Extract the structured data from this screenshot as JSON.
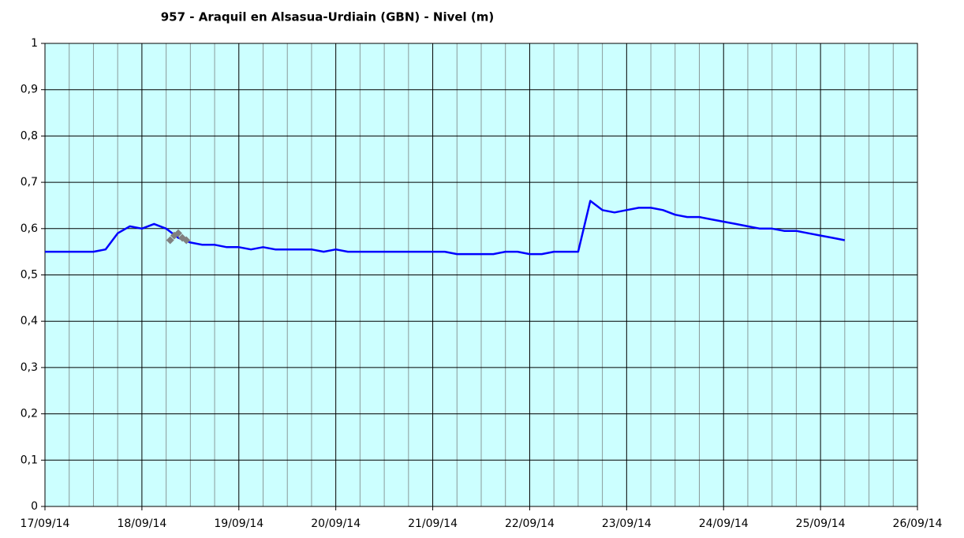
{
  "chart_data": {
    "type": "line",
    "title": "957 - Araquil en Alsasua-Urdiain (GBN) - Nivel (m)",
    "x": [
      "2014-09-17T00:00",
      "2014-09-17T03:00",
      "2014-09-17T06:00",
      "2014-09-17T09:00",
      "2014-09-17T12:00",
      "2014-09-17T15:00",
      "2014-09-17T18:00",
      "2014-09-17T21:00",
      "2014-09-18T00:00",
      "2014-09-18T03:00",
      "2014-09-18T06:00",
      "2014-09-18T09:00",
      "2014-09-18T12:00",
      "2014-09-18T15:00",
      "2014-09-18T18:00",
      "2014-09-18T21:00",
      "2014-09-19T00:00",
      "2014-09-19T03:00",
      "2014-09-19T06:00",
      "2014-09-19T09:00",
      "2014-09-19T12:00",
      "2014-09-19T15:00",
      "2014-09-19T18:00",
      "2014-09-19T21:00",
      "2014-09-20T00:00",
      "2014-09-20T03:00",
      "2014-09-20T06:00",
      "2014-09-20T09:00",
      "2014-09-20T12:00",
      "2014-09-20T15:00",
      "2014-09-20T18:00",
      "2014-09-20T21:00",
      "2014-09-21T00:00",
      "2014-09-21T03:00",
      "2014-09-21T06:00",
      "2014-09-21T09:00",
      "2014-09-21T12:00",
      "2014-09-21T15:00",
      "2014-09-21T18:00",
      "2014-09-21T21:00",
      "2014-09-22T00:00",
      "2014-09-22T03:00",
      "2014-09-22T06:00",
      "2014-09-22T09:00",
      "2014-09-22T12:00",
      "2014-09-22T15:00",
      "2014-09-22T18:00",
      "2014-09-22T21:00",
      "2014-09-23T00:00",
      "2014-09-23T03:00",
      "2014-09-23T06:00",
      "2014-09-23T09:00",
      "2014-09-23T12:00",
      "2014-09-23T15:00",
      "2014-09-23T18:00",
      "2014-09-23T21:00",
      "2014-09-24T00:00",
      "2014-09-24T03:00",
      "2014-09-24T06:00",
      "2014-09-24T09:00",
      "2014-09-24T12:00",
      "2014-09-24T15:00",
      "2014-09-24T18:00",
      "2014-09-24T21:00",
      "2014-09-25T00:00",
      "2014-09-25T03:00",
      "2014-09-25T06:00"
    ],
    "series": [
      {
        "color": "#0000ff",
        "values": [
          0.55,
          0.55,
          0.55,
          0.55,
          0.55,
          0.555,
          0.59,
          0.605,
          0.6,
          0.61,
          0.6,
          0.58,
          0.57,
          0.565,
          0.565,
          0.56,
          0.56,
          0.555,
          0.56,
          0.555,
          0.555,
          0.555,
          0.555,
          0.55,
          0.555,
          0.55,
          0.55,
          0.55,
          0.55,
          0.55,
          0.55,
          0.55,
          0.55,
          0.55,
          0.545,
          0.545,
          0.545,
          0.545,
          0.55,
          0.55,
          0.545,
          0.545,
          0.55,
          0.55,
          0.55,
          0.66,
          0.64,
          0.635,
          0.64,
          0.645,
          0.645,
          0.64,
          0.63,
          0.625,
          0.625,
          0.62,
          0.615,
          0.61,
          0.605,
          0.6,
          0.6,
          0.595,
          0.595,
          0.59,
          0.585,
          0.58,
          0.575
        ]
      },
      {
        "color": "#808080",
        "marker": "diamond",
        "x": [
          "2014-09-18T07:00",
          "2014-09-18T08:00",
          "2014-09-18T09:00",
          "2014-09-18T10:00",
          "2014-09-18T11:00"
        ],
        "values": [
          0.575,
          0.585,
          0.59,
          0.58,
          0.575
        ]
      }
    ],
    "xlim": [
      "2014-09-17T00:00",
      "2014-09-26T00:00"
    ],
    "xticks": [
      {
        "value": "2014-09-17T00:00",
        "label": "17/09/14"
      },
      {
        "value": "2014-09-18T00:00",
        "label": "18/09/14"
      },
      {
        "value": "2014-09-19T00:00",
        "label": "19/09/14"
      },
      {
        "value": "2014-09-20T00:00",
        "label": "20/09/14"
      },
      {
        "value": "2014-09-21T00:00",
        "label": "21/09/14"
      },
      {
        "value": "2014-09-22T00:00",
        "label": "22/09/14"
      },
      {
        "value": "2014-09-23T00:00",
        "label": "23/09/14"
      },
      {
        "value": "2014-09-24T00:00",
        "label": "24/09/14"
      },
      {
        "value": "2014-09-25T00:00",
        "label": "25/09/14"
      },
      {
        "value": "2014-09-26T00:00",
        "label": "26/09/14"
      }
    ],
    "ylim": [
      0,
      1
    ],
    "yticks": [
      0,
      {
        "value": 0.1,
        "label": "0,1"
      },
      {
        "value": 0.2,
        "label": "0,2"
      },
      {
        "value": 0.3,
        "label": "0,3"
      },
      {
        "value": 0.4,
        "label": "0,4"
      },
      {
        "value": 0.5,
        "label": "0,5"
      },
      {
        "value": 0.6,
        "label": "0,6"
      },
      {
        "value": 0.7,
        "label": "0,7"
      },
      {
        "value": 0.8,
        "label": "0,8"
      },
      {
        "value": 0.9,
        "label": "0,9"
      },
      1
    ],
    "grid": true,
    "background": "#ccffff"
  }
}
